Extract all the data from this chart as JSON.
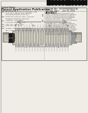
{
  "bg_color": "#f0ede6",
  "barcode_color": "#111111",
  "diagram_bg": "#f0ede6",
  "diagram_border": "#888888",
  "coil_fill": "#d8d0c0",
  "body_fill": "#c8bfaa",
  "left_cap_fill": "#222222",
  "right_cap_fill": "#999999",
  "connector_fill": "#bbbbbb",
  "wire_color": "#888888",
  "line_color": "#777777",
  "text_dark": "#222222",
  "text_med": "#444444",
  "text_light": "#666666"
}
